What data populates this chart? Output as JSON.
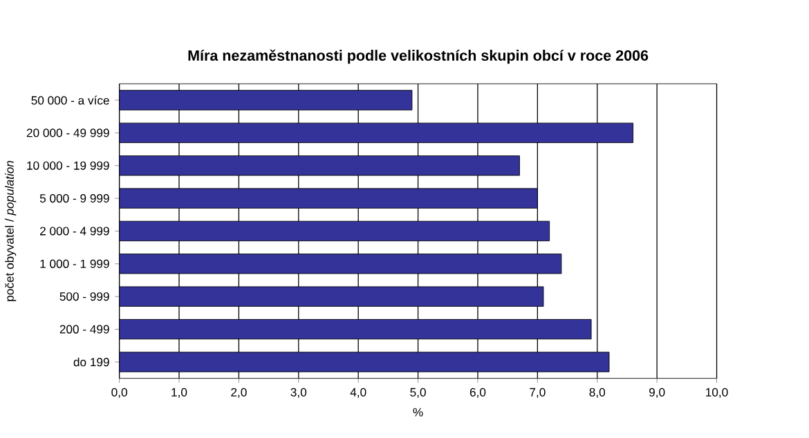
{
  "chart_data": {
    "type": "bar",
    "orientation": "horizontal",
    "title": "Míra nezaměstnanosti podle velikostních skupin obcí v roce 2006",
    "categories": [
      "50 000 - a více",
      "20 000 - 49 999",
      "10 000 - 19 999",
      "5 000 - 9 999",
      "2 000 - 4 999",
      "1 000 - 1 999",
      "500 - 999",
      "200 - 499",
      "do 199"
    ],
    "values": [
      4.9,
      8.6,
      6.7,
      7.0,
      7.2,
      7.4,
      7.1,
      7.9,
      8.2
    ],
    "color": "#333399",
    "xlabel": "%",
    "ylabel": "počet obyvatel / *population*",
    "xlim": [
      0,
      10
    ],
    "xticks": [
      {
        "value": 0,
        "label": "0,0"
      },
      {
        "value": 1,
        "label": "1,0"
      },
      {
        "value": 2,
        "label": "2,0"
      },
      {
        "value": 3,
        "label": "3,0"
      },
      {
        "value": 4,
        "label": "4,0"
      },
      {
        "value": 5,
        "label": "5,0"
      },
      {
        "value": 6,
        "label": "6,0"
      },
      {
        "value": 7,
        "label": "7,0"
      },
      {
        "value": 8,
        "label": "8,0"
      },
      {
        "value": 9,
        "label": "9,0"
      },
      {
        "value": 10,
        "label": "10,0"
      }
    ],
    "grid": "x"
  }
}
